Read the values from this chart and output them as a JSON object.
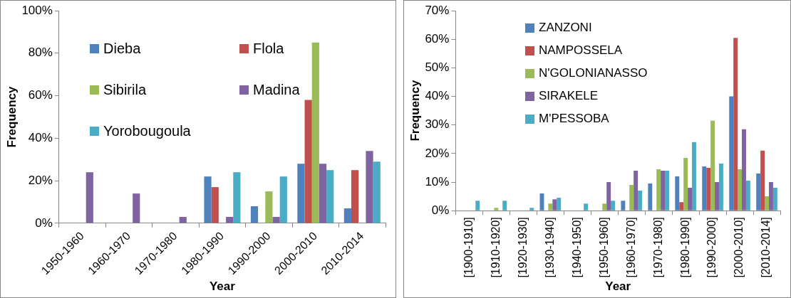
{
  "chart_data": [
    {
      "type": "bar",
      "xlabel": "Year",
      "ylabel": "Frequency",
      "categories": [
        "1950-1960",
        "1960-1970",
        "1970-1980",
        "1980-1990",
        "1990-2000",
        "2000-2010",
        "2010-2014"
      ],
      "series": [
        {
          "name": "Dieba",
          "color": "#4f81bd",
          "values": [
            0,
            0,
            0,
            22,
            8,
            28,
            7
          ]
        },
        {
          "name": "Flola",
          "color": "#c0504d",
          "values": [
            0,
            0,
            0,
            17,
            0,
            58,
            25
          ]
        },
        {
          "name": "Sibirila",
          "color": "#9bbb59",
          "values": [
            0,
            0,
            0,
            0,
            15,
            85,
            0
          ]
        },
        {
          "name": "Madina",
          "color": "#8064a2",
          "values": [
            24,
            14,
            3,
            3,
            3,
            28,
            34
          ]
        },
        {
          "name": "Yorobougoula",
          "color": "#4bacc6",
          "values": [
            0,
            0,
            0,
            24,
            22,
            25,
            29
          ]
        }
      ],
      "ylim": [
        0,
        100
      ],
      "yticks": [
        {
          "value": 0,
          "label": "0%"
        },
        {
          "value": 20,
          "label": "20%"
        },
        {
          "value": 40,
          "label": "40%"
        },
        {
          "value": 60,
          "label": "60%"
        },
        {
          "value": 80,
          "label": "80%"
        },
        {
          "value": 100,
          "label": "100%"
        }
      ],
      "grid": false,
      "legend": "top left"
    },
    {
      "type": "bar",
      "xlabel": "Year",
      "ylabel": "Frequency",
      "categories": [
        "[1900-1910]",
        "[1910-1920]",
        "[1920-1930]",
        "[1930-1940]",
        "[1940-1950]",
        "[1950-1960]",
        "[1960-1970]",
        "[1970-1980]",
        "[1980-1990]",
        "[1990-2000]",
        "[2000-2010]",
        "[2010-2014]"
      ],
      "series": [
        {
          "name": "ZANZONI",
          "color": "#4f81bd",
          "values": [
            0,
            0,
            0,
            6,
            0,
            0,
            3.5,
            9.5,
            12,
            15.5,
            40,
            13
          ]
        },
        {
          "name": "NAMPOSSELA",
          "color": "#c0504d",
          "values": [
            0,
            0,
            0,
            0,
            0,
            0,
            0,
            0,
            3,
            15,
            60.5,
            21
          ]
        },
        {
          "name": "N'GOLONIANASSO",
          "color": "#9bbb59",
          "values": [
            0,
            1,
            0,
            2.5,
            0,
            2.5,
            9,
            14.5,
            18.5,
            31.5,
            14.5,
            5
          ]
        },
        {
          "name": "SIRAKELE",
          "color": "#8064a2",
          "values": [
            0,
            0,
            0,
            4,
            0,
            10,
            14,
            14,
            8,
            10,
            28.5,
            10
          ]
        },
        {
          "name": "M'PESSOBA",
          "color": "#4bacc6",
          "values": [
            3.5,
            3.5,
            1,
            4.5,
            2.5,
            3.5,
            7,
            14,
            24,
            16.5,
            10.5,
            8
          ]
        }
      ],
      "ylim": [
        0,
        70
      ],
      "yticks": [
        {
          "value": 0,
          "label": "0%"
        },
        {
          "value": 10,
          "label": "10%"
        },
        {
          "value": 20,
          "label": "20%"
        },
        {
          "value": 30,
          "label": "30%"
        },
        {
          "value": 40,
          "label": "40%"
        },
        {
          "value": 50,
          "label": "50%"
        },
        {
          "value": 60,
          "label": "60%"
        },
        {
          "value": 70,
          "label": "70%"
        }
      ],
      "grid": false,
      "legend": "top left"
    }
  ]
}
